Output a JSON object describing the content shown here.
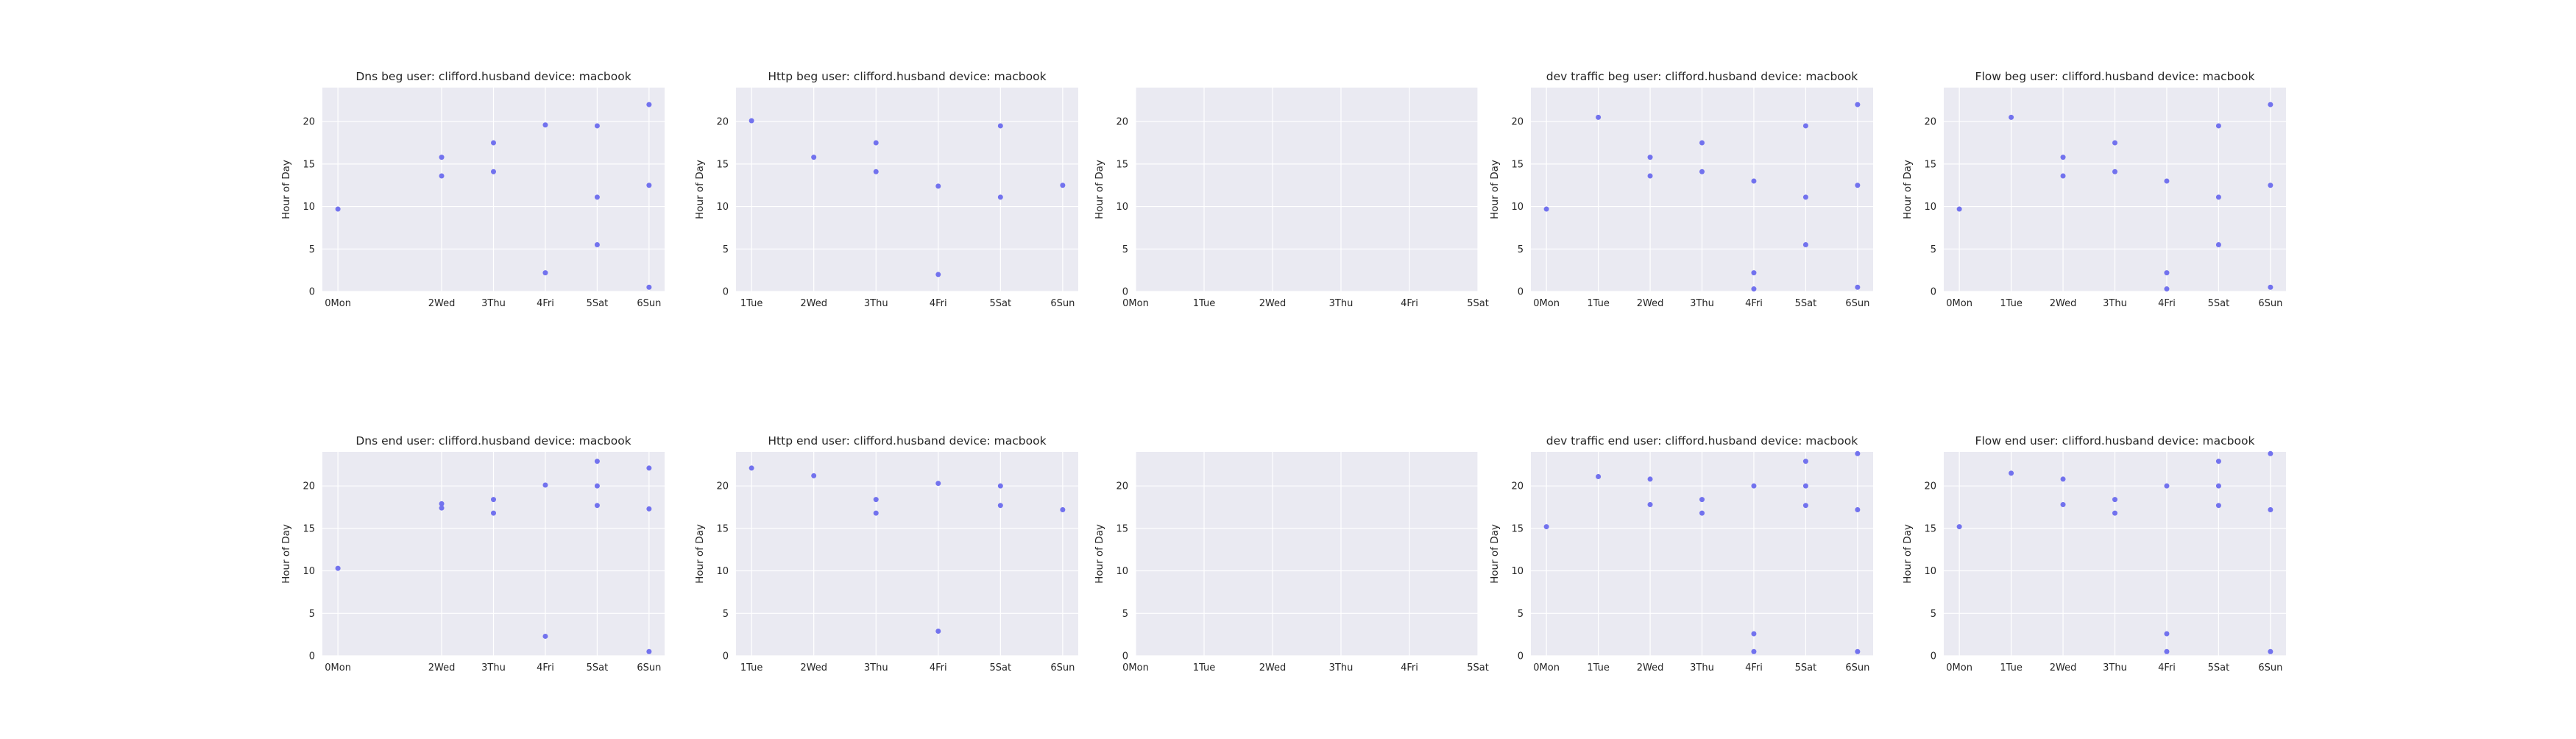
{
  "chart_data": [
    {
      "type": "scatter",
      "title": "Dns beg user: clifford.husband device: macbook",
      "ylabel": "Hour of Day",
      "categories": [
        "0Mon",
        "2Wed",
        "3Thu",
        "4Fri",
        "5Sat",
        "6Sun"
      ],
      "x_positions": [
        0,
        2,
        3,
        4,
        5,
        6
      ],
      "xlim": [
        -0.3,
        6.3
      ],
      "ylim": [
        0,
        24
      ],
      "yticks": [
        0,
        5,
        10,
        15,
        20
      ],
      "points": [
        {
          "x": 0,
          "y": 9.7
        },
        {
          "x": 2,
          "y": 15.8
        },
        {
          "x": 2,
          "y": 13.6
        },
        {
          "x": 3,
          "y": 17.5
        },
        {
          "x": 3,
          "y": 14.1
        },
        {
          "x": 4,
          "y": 19.6
        },
        {
          "x": 4,
          "y": 2.2
        },
        {
          "x": 5,
          "y": 19.5
        },
        {
          "x": 5,
          "y": 11.1
        },
        {
          "x": 5,
          "y": 5.5
        },
        {
          "x": 6,
          "y": 22.0
        },
        {
          "x": 6,
          "y": 12.5
        },
        {
          "x": 6,
          "y": 0.5
        }
      ]
    },
    {
      "type": "scatter",
      "title": "Http beg user: clifford.husband device: macbook",
      "ylabel": "Hour of Day",
      "categories": [
        "1Tue",
        "2Wed",
        "3Thu",
        "4Fri",
        "5Sat",
        "6Sun"
      ],
      "x_positions": [
        1,
        2,
        3,
        4,
        5,
        6
      ],
      "xlim": [
        0.75,
        6.25
      ],
      "ylim": [
        0,
        24
      ],
      "yticks": [
        0,
        5,
        10,
        15,
        20
      ],
      "points": [
        {
          "x": 1,
          "y": 20.1
        },
        {
          "x": 2,
          "y": 15.8
        },
        {
          "x": 3,
          "y": 17.5
        },
        {
          "x": 3,
          "y": 14.1
        },
        {
          "x": 4,
          "y": 12.4
        },
        {
          "x": 4,
          "y": 2.0
        },
        {
          "x": 5,
          "y": 19.5
        },
        {
          "x": 5,
          "y": 11.1
        },
        {
          "x": 6,
          "y": 12.5
        }
      ]
    },
    {
      "type": "scatter",
      "title": "",
      "ylabel": "Hour of Day",
      "categories": [
        "0Mon",
        "1Tue",
        "2Wed",
        "3Thu",
        "4Fri",
        "5Sat"
      ],
      "x_positions": [
        0,
        1,
        2,
        3,
        4,
        5
      ],
      "xlim": [
        0,
        5
      ],
      "ylim": [
        0,
        24
      ],
      "yticks": [
        0,
        5,
        10,
        15,
        20
      ],
      "points": []
    },
    {
      "type": "scatter",
      "title": "dev traffic beg user: clifford.husband device: macbook",
      "ylabel": "Hour of Day",
      "categories": [
        "0Mon",
        "1Tue",
        "2Wed",
        "3Thu",
        "4Fri",
        "5Sat",
        "6Sun"
      ],
      "x_positions": [
        0,
        1,
        2,
        3,
        4,
        5,
        6
      ],
      "xlim": [
        -0.3,
        6.3
      ],
      "ylim": [
        0,
        24
      ],
      "yticks": [
        0,
        5,
        10,
        15,
        20
      ],
      "points": [
        {
          "x": 0,
          "y": 9.7
        },
        {
          "x": 1,
          "y": 20.5
        },
        {
          "x": 2,
          "y": 15.8
        },
        {
          "x": 2,
          "y": 13.6
        },
        {
          "x": 3,
          "y": 17.5
        },
        {
          "x": 3,
          "y": 14.1
        },
        {
          "x": 4,
          "y": 13.0
        },
        {
          "x": 4,
          "y": 2.2
        },
        {
          "x": 4,
          "y": 0.3
        },
        {
          "x": 5,
          "y": 19.5
        },
        {
          "x": 5,
          "y": 11.1
        },
        {
          "x": 5,
          "y": 5.5
        },
        {
          "x": 6,
          "y": 22.0
        },
        {
          "x": 6,
          "y": 12.5
        },
        {
          "x": 6,
          "y": 0.5
        }
      ]
    },
    {
      "type": "scatter",
      "title": "Flow beg user: clifford.husband device: macbook",
      "ylabel": "Hour of Day",
      "categories": [
        "0Mon",
        "1Tue",
        "2Wed",
        "3Thu",
        "4Fri",
        "5Sat",
        "6Sun"
      ],
      "x_positions": [
        0,
        1,
        2,
        3,
        4,
        5,
        6
      ],
      "xlim": [
        -0.3,
        6.3
      ],
      "ylim": [
        0,
        24
      ],
      "yticks": [
        0,
        5,
        10,
        15,
        20
      ],
      "points": [
        {
          "x": 0,
          "y": 9.7
        },
        {
          "x": 1,
          "y": 20.5
        },
        {
          "x": 2,
          "y": 15.8
        },
        {
          "x": 2,
          "y": 13.6
        },
        {
          "x": 3,
          "y": 17.5
        },
        {
          "x": 3,
          "y": 14.1
        },
        {
          "x": 4,
          "y": 13.0
        },
        {
          "x": 4,
          "y": 2.2
        },
        {
          "x": 4,
          "y": 0.3
        },
        {
          "x": 5,
          "y": 19.5
        },
        {
          "x": 5,
          "y": 11.1
        },
        {
          "x": 5,
          "y": 5.5
        },
        {
          "x": 6,
          "y": 22.0
        },
        {
          "x": 6,
          "y": 12.5
        },
        {
          "x": 6,
          "y": 0.5
        }
      ]
    },
    {
      "type": "scatter",
      "title": "Dns end user: clifford.husband device: macbook",
      "ylabel": "Hour of Day",
      "categories": [
        "0Mon",
        "2Wed",
        "3Thu",
        "4Fri",
        "5Sat",
        "6Sun"
      ],
      "x_positions": [
        0,
        2,
        3,
        4,
        5,
        6
      ],
      "xlim": [
        -0.3,
        6.3
      ],
      "ylim": [
        0,
        24
      ],
      "yticks": [
        0,
        5,
        10,
        15,
        20
      ],
      "points": [
        {
          "x": 0,
          "y": 10.3
        },
        {
          "x": 2,
          "y": 17.9
        },
        {
          "x": 2,
          "y": 17.4
        },
        {
          "x": 3,
          "y": 18.4
        },
        {
          "x": 3,
          "y": 16.8
        },
        {
          "x": 4,
          "y": 20.1
        },
        {
          "x": 4,
          "y": 2.3
        },
        {
          "x": 5,
          "y": 22.9
        },
        {
          "x": 5,
          "y": 20.0
        },
        {
          "x": 5,
          "y": 17.7
        },
        {
          "x": 6,
          "y": 22.1
        },
        {
          "x": 6,
          "y": 17.3
        },
        {
          "x": 6,
          "y": 0.5
        }
      ]
    },
    {
      "type": "scatter",
      "title": "Http end user: clifford.husband device: macbook",
      "ylabel": "Hour of Day",
      "categories": [
        "1Tue",
        "2Wed",
        "3Thu",
        "4Fri",
        "5Sat",
        "6Sun"
      ],
      "x_positions": [
        1,
        2,
        3,
        4,
        5,
        6
      ],
      "xlim": [
        0.75,
        6.25
      ],
      "ylim": [
        0,
        24
      ],
      "yticks": [
        0,
        5,
        10,
        15,
        20
      ],
      "points": [
        {
          "x": 1,
          "y": 22.1
        },
        {
          "x": 2,
          "y": 21.2
        },
        {
          "x": 3,
          "y": 18.4
        },
        {
          "x": 3,
          "y": 16.8
        },
        {
          "x": 4,
          "y": 20.3
        },
        {
          "x": 4,
          "y": 2.9
        },
        {
          "x": 5,
          "y": 20.0
        },
        {
          "x": 5,
          "y": 17.7
        },
        {
          "x": 6,
          "y": 17.2
        }
      ]
    },
    {
      "type": "scatter",
      "title": "",
      "ylabel": "Hour of Day",
      "categories": [
        "0Mon",
        "1Tue",
        "2Wed",
        "3Thu",
        "4Fri",
        "5Sat"
      ],
      "x_positions": [
        0,
        1,
        2,
        3,
        4,
        5
      ],
      "xlim": [
        0,
        5
      ],
      "ylim": [
        0,
        24
      ],
      "yticks": [
        0,
        5,
        10,
        15,
        20
      ],
      "points": []
    },
    {
      "type": "scatter",
      "title": "dev traffic end user: clifford.husband device: macbook",
      "ylabel": "Hour of Day",
      "categories": [
        "0Mon",
        "1Tue",
        "2Wed",
        "3Thu",
        "4Fri",
        "5Sat",
        "6Sun"
      ],
      "x_positions": [
        0,
        1,
        2,
        3,
        4,
        5,
        6
      ],
      "xlim": [
        -0.3,
        6.3
      ],
      "ylim": [
        0,
        24
      ],
      "yticks": [
        0,
        5,
        10,
        15,
        20
      ],
      "points": [
        {
          "x": 0,
          "y": 15.2
        },
        {
          "x": 1,
          "y": 21.1
        },
        {
          "x": 2,
          "y": 20.8
        },
        {
          "x": 2,
          "y": 17.8
        },
        {
          "x": 3,
          "y": 18.4
        },
        {
          "x": 3,
          "y": 16.8
        },
        {
          "x": 4,
          "y": 20.0
        },
        {
          "x": 4,
          "y": 2.6
        },
        {
          "x": 4,
          "y": 0.5
        },
        {
          "x": 5,
          "y": 22.9
        },
        {
          "x": 5,
          "y": 20.0
        },
        {
          "x": 5,
          "y": 17.7
        },
        {
          "x": 6,
          "y": 23.8
        },
        {
          "x": 6,
          "y": 17.2
        },
        {
          "x": 6,
          "y": 0.5
        }
      ]
    },
    {
      "type": "scatter",
      "title": "Flow end user: clifford.husband device: macbook",
      "ylabel": "Hour of Day",
      "categories": [
        "0Mon",
        "1Tue",
        "2Wed",
        "3Thu",
        "4Fri",
        "5Sat",
        "6Sun"
      ],
      "x_positions": [
        0,
        1,
        2,
        3,
        4,
        5,
        6
      ],
      "xlim": [
        -0.3,
        6.3
      ],
      "ylim": [
        0,
        24
      ],
      "yticks": [
        0,
        5,
        10,
        15,
        20
      ],
      "points": [
        {
          "x": 0,
          "y": 15.2
        },
        {
          "x": 1,
          "y": 21.5
        },
        {
          "x": 2,
          "y": 20.8
        },
        {
          "x": 2,
          "y": 17.8
        },
        {
          "x": 3,
          "y": 18.4
        },
        {
          "x": 3,
          "y": 16.8
        },
        {
          "x": 4,
          "y": 20.0
        },
        {
          "x": 4,
          "y": 2.6
        },
        {
          "x": 4,
          "y": 0.5
        },
        {
          "x": 5,
          "y": 22.9
        },
        {
          "x": 5,
          "y": 20.0
        },
        {
          "x": 5,
          "y": 17.7
        },
        {
          "x": 6,
          "y": 23.8
        },
        {
          "x": 6,
          "y": 17.2
        },
        {
          "x": 6,
          "y": 0.5
        }
      ]
    }
  ],
  "style": {
    "plot_background": "#eaeaf2",
    "grid_color": "#ffffff",
    "marker_color": "#7272ee",
    "text_color": "#262626"
  }
}
